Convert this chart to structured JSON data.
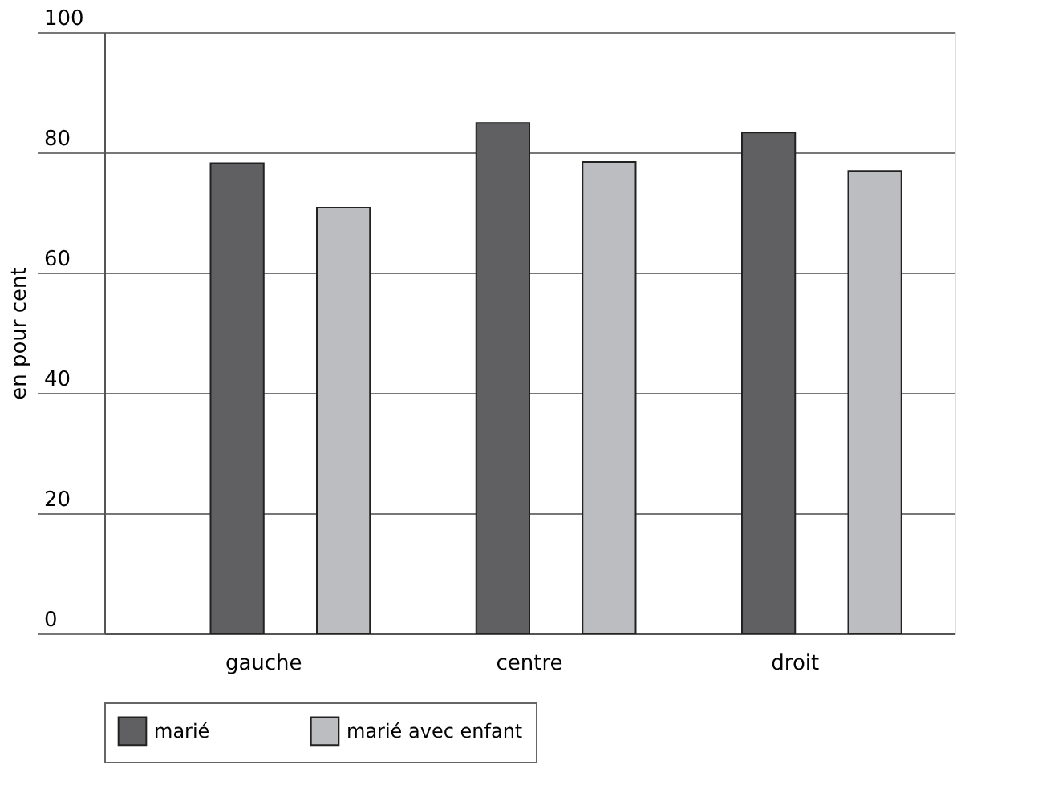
{
  "chart_data": {
    "type": "bar",
    "ylabel": "en pour cent",
    "categories": [
      "gauche",
      "centre",
      "droit"
    ],
    "series": [
      {
        "name": "marié",
        "color": "#606062",
        "values": [
          78.2,
          84.9,
          83.3
        ]
      },
      {
        "name": "marié avec enfant",
        "color": "#bcbdc0",
        "values": [
          70.8,
          78.4,
          76.9
        ]
      }
    ],
    "ylim": [
      0,
      100
    ],
    "yticks": [
      0,
      20,
      40,
      60,
      80,
      100
    ],
    "grid": "y",
    "legend": "bottom"
  }
}
